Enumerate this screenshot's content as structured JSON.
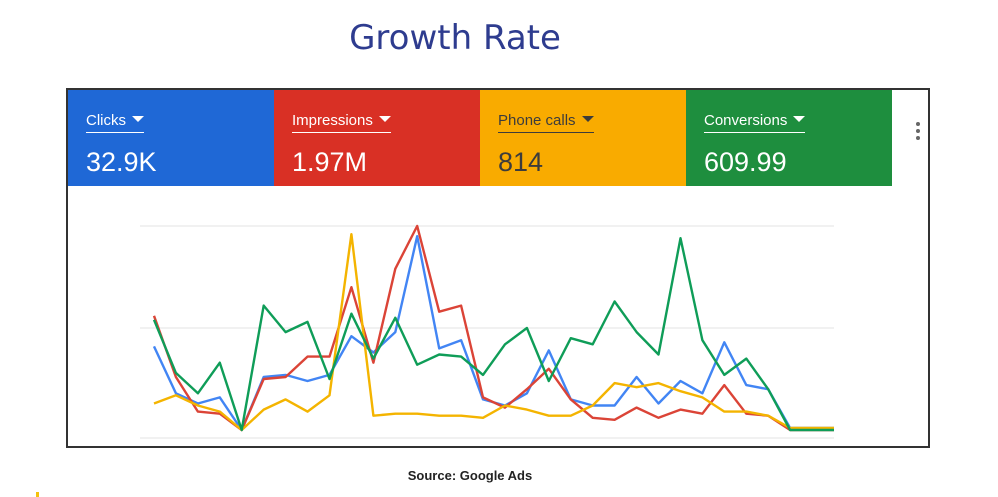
{
  "title": "Growth Rate",
  "source": "Source: Google Ads",
  "metrics": [
    {
      "label": "Clicks",
      "value": "32.9K",
      "bg": "#1f68d6",
      "fg": "#ffffff"
    },
    {
      "label": "Impressions",
      "value": "1.97M",
      "bg": "#d93025",
      "fg": "#ffffff"
    },
    {
      "label": "Phone calls",
      "value": "814",
      "bg": "#f9ab00",
      "fg": "#3c3c3c"
    },
    {
      "label": "Conversions",
      "value": "609.99",
      "bg": "#1e8e3e",
      "fg": "#ffffff"
    }
  ],
  "menu_icon": "more-vert-icon",
  "chart_data": {
    "type": "line",
    "x": [
      1,
      2,
      3,
      4,
      5,
      6,
      7,
      8,
      9,
      10,
      11,
      12,
      13,
      14,
      15,
      16,
      17,
      18,
      19,
      20,
      21,
      22,
      23,
      24,
      25,
      26,
      27,
      28,
      29,
      30,
      31,
      32
    ],
    "ylim": [
      0,
      100
    ],
    "grid": true,
    "series": [
      {
        "color": "#4285f4",
        "values": [
          41,
          18,
          13,
          16,
          0,
          26,
          27,
          24,
          27,
          46,
          38,
          48,
          95,
          40,
          44,
          15,
          12,
          18,
          39,
          15,
          12,
          12,
          26,
          13,
          24,
          18,
          43,
          22,
          20,
          1,
          1,
          1
        ]
      },
      {
        "color": "#db4437",
        "values": [
          56,
          26,
          9,
          8,
          0,
          25,
          26,
          36,
          36,
          70,
          33,
          79,
          100,
          58,
          61,
          16,
          11,
          20,
          30,
          15,
          6,
          5,
          11,
          6,
          10,
          8,
          22,
          8,
          7,
          0,
          0,
          0
        ]
      },
      {
        "color": "#f4b400",
        "values": [
          13,
          17,
          12,
          9,
          0,
          10,
          15,
          9,
          17,
          96,
          7,
          8,
          8,
          7,
          7,
          6,
          12,
          10,
          7,
          7,
          12,
          23,
          21,
          23,
          19,
          16,
          9,
          9,
          7,
          1,
          1,
          1
        ]
      },
      {
        "color": "#0f9d58",
        "values": [
          54,
          28,
          18,
          33,
          0,
          61,
          48,
          53,
          25,
          57,
          35,
          55,
          32,
          37,
          36,
          27,
          42,
          50,
          24,
          45,
          42,
          63,
          48,
          37,
          94,
          44,
          27,
          35,
          20,
          0,
          0,
          0
        ]
      }
    ]
  }
}
